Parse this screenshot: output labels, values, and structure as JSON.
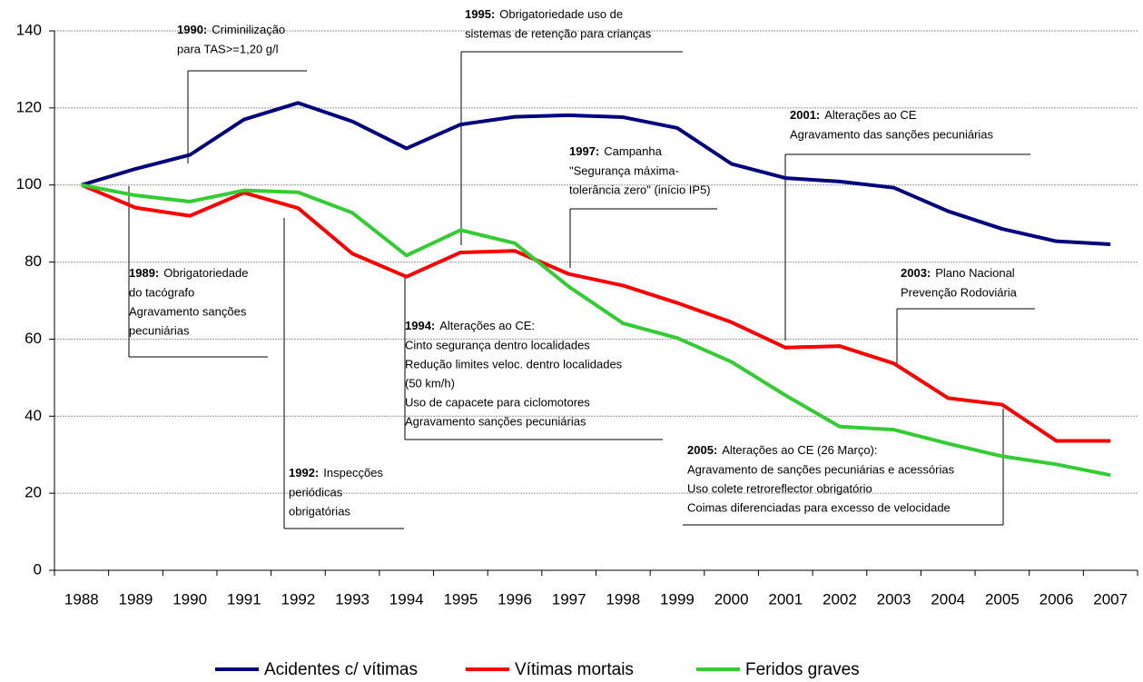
{
  "chart_data": {
    "type": "line",
    "categories": [
      "1988",
      "1989",
      "1990",
      "1991",
      "1992",
      "1993",
      "1994",
      "1995",
      "1996",
      "1997",
      "1998",
      "1999",
      "2000",
      "2001",
      "2002",
      "2003",
      "2004",
      "2005",
      "2006",
      "2007"
    ],
    "series": [
      {
        "name": "Acidentes c/ vítimas",
        "color": "#00007f",
        "values": [
          100,
          104.2,
          107.8,
          117,
          121.3,
          116.5,
          109.5,
          115.7,
          117.7,
          118.1,
          117.6,
          114.8,
          105.5,
          101.8,
          100.9,
          99.3,
          93.2,
          88.6,
          85.4,
          84.6
        ]
      },
      {
        "name": "Vítimas mortais",
        "color": "#ff0000",
        "values": [
          100,
          94.1,
          92,
          98,
          94,
          82.2,
          76.2,
          82.5,
          82.9,
          76.9,
          73.9,
          69.4,
          64.4,
          57.8,
          58.2,
          53.7,
          44.7,
          43,
          33.6,
          33.6
        ]
      },
      {
        "name": "Feridos graves",
        "color": "#33cc33",
        "values": [
          100,
          97.3,
          95.7,
          98.6,
          98.1,
          92.8,
          81.7,
          88.3,
          84.9,
          73.6,
          64.1,
          60.3,
          54.1,
          45.4,
          37.3,
          36.5,
          32.9,
          29.6,
          27.5,
          24.7
        ]
      }
    ],
    "ylim": [
      0,
      140
    ],
    "yticks": [
      0,
      20,
      40,
      60,
      80,
      100,
      120,
      140
    ],
    "grid": true,
    "legend": "bottom",
    "annotations": [
      {
        "year": "1990:",
        "lines": [
          "Criminilização",
          "para TAS>=1,20 g/l"
        ]
      },
      {
        "year": "1995:",
        "lines": [
          "Obrigatoriedade uso de",
          "sistemas de retenção para crianças"
        ]
      },
      {
        "year": "2001:",
        "lines": [
          "Alterações ao CE",
          "Agravamento das sanções pecuniárias"
        ]
      },
      {
        "year": "1997:",
        "lines": [
          "Campanha",
          "\"Segurança máxima-",
          "tolerância zero\" (início IP5)"
        ]
      },
      {
        "year": "1989:",
        "lines": [
          "Obrigatoriedade",
          "do tacógrafo",
          "Agravamento sanções",
          "pecuniárias"
        ]
      },
      {
        "year": "2003:",
        "lines": [
          "Plano Nacional",
          "Prevenção Rodoviária"
        ]
      },
      {
        "year": "1994:",
        "lines": [
          "Alterações ao CE:",
          "Cinto segurança dentro localidades",
          "Redução limites veloc. dentro localidades",
          "(50 km/h)",
          "Uso de capacete para ciclomotores",
          "Agravamento sanções pecuniárias"
        ]
      },
      {
        "year": "2005:",
        "lines": [
          "Alterações ao CE (26 Março):",
          "Agravamento de sanções pecuniárias e acessórias",
          "Uso colete retroreflector obrigatório",
          "Coimas diferenciadas para excesso de velocidade"
        ]
      },
      {
        "year": "1992:",
        "lines": [
          "Inspecções",
          "periódicas",
          "obrigatórias"
        ]
      }
    ]
  }
}
